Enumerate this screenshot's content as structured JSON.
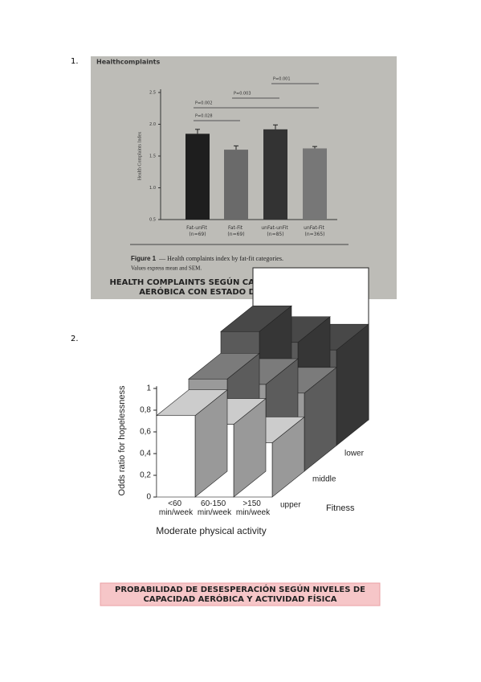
{
  "list_numbers": [
    "1.",
    "2."
  ],
  "chart_data": [
    {
      "type": "bar",
      "heading": "Healthcomplaints",
      "y_label": "Health Complaints Index",
      "categories": [
        "Fat-unFit (n=69)",
        "Fat-Fit (n=69)",
        "unFat-unFit (n=85)",
        "unFat-Fit (n=365)"
      ],
      "values": [
        1.85,
        1.6,
        1.92,
        1.62
      ],
      "errors": [
        0.07,
        0.06,
        0.07,
        0.03
      ],
      "colors": [
        "#1e1e1e",
        "#6a6a6a",
        "#333333",
        "#777777"
      ],
      "ylim": [
        0.5,
        2.5
      ],
      "yticks": [
        0.5,
        {
          "value": 1,
          "label": "1.0"
        },
        1.5,
        {
          "value": 2,
          "label": "2.0"
        },
        2.5
      ],
      "annotations": [
        "P=0.028",
        "P=0.002",
        "P=0.003",
        "P=0.001"
      ],
      "figure_label": "Figure 1",
      "caption": "— Health complaints index by fat-fit categories.",
      "caption_2": "Values express mean and SEM.",
      "banner": [
        "HEALTH COMPLAINTS SEGÚN CATEGORÍAS DE CAPACIDAD",
        "AERÓBICA CON ESTADO DE PESO CORPORAL"
      ]
    },
    {
      "type": "bar3d",
      "y_label": "Odds ratio for hopelessness",
      "x_label": "Moderate physical activity",
      "depth_label": "Fitness",
      "categories": [
        "<60 min/week",
        "60-150 min/week",
        ">150 min/week"
      ],
      "series": [
        {
          "name": "upper",
          "color": "#ffffff",
          "values": [
            0.75,
            0.67,
            0.5
          ]
        },
        {
          "name": "middle",
          "color": "#9a9a9a",
          "values": [
            0.85,
            0.8,
            0.72
          ]
        },
        {
          "name": "lower",
          "color": "#5a5a5a",
          "values": [
            1.05,
            0.95,
            0.88
          ]
        }
      ],
      "ylim": [
        0,
        1
      ],
      "yticks": [
        0,
        {
          "value": 0.2,
          "label": "0,2"
        },
        {
          "value": 0.4,
          "label": "0,4"
        },
        {
          "value": 0.6,
          "label": "0,6"
        },
        {
          "value": 0.8,
          "label": "0,8"
        },
        1
      ],
      "banner": [
        "PROBABILIDAD DE DESESPERACIÓN SEGÚN NIVELES DE",
        "CAPACIDAD AERÓBICA Y ACTIVIDAD FÍSICA"
      ]
    }
  ]
}
